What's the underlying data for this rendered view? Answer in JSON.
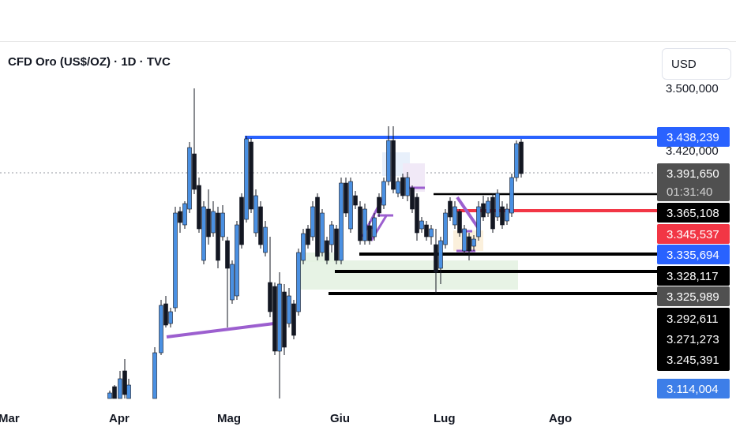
{
  "header": {
    "title": "CFD Oro (US$/OZ) · 1D · TVC",
    "currency": "USD"
  },
  "colors": {
    "up_body": "#4a90e2",
    "down_body": "#131722",
    "resistance_line": "#2962ff",
    "red_line": "#f23645",
    "black_line": "#000000",
    "purple_drawing": "#9c5fcf",
    "zone_green": "#e3f1e0"
  },
  "chart_data": {
    "type": "candlestick",
    "title": "CFD Oro (US$/OZ) · 1D · TVC",
    "x_labels": [
      "Mar",
      "Apr",
      "Mag",
      "Giu",
      "Lug",
      "Ago"
    ],
    "price_axis_ticks": [
      "3.500,000",
      "3.420,000"
    ],
    "price_labels": [
      {
        "text": "3.438,239",
        "value": 3438.239,
        "style": "blue"
      },
      {
        "text": "3.391,650",
        "value": 3391.65,
        "style": "dark-gray"
      },
      {
        "text": "01:31:40",
        "style": "dark-gray-countdown"
      },
      {
        "text": "3.365,108",
        "value": 3365.108,
        "style": "black"
      },
      {
        "text": "3.345,537",
        "value": 3345.537,
        "style": "red"
      },
      {
        "text": "3.335,694",
        "value": 3335.694,
        "style": "blue"
      },
      {
        "text": "3.328,117",
        "value": 3328.117,
        "style": "black"
      },
      {
        "text": "3.325,989",
        "value": 3325.989,
        "style": "dark-gray"
      },
      {
        "text": "3.292,611",
        "value": 3292.611,
        "style": "black"
      },
      {
        "text": "3.271,273",
        "value": 3271.273,
        "style": "black"
      },
      {
        "text": "3.245,391",
        "value": 3245.391,
        "style": "black"
      },
      {
        "text": "3.114,004",
        "value": 3114.004,
        "style": "blue"
      }
    ],
    "horizontal_levels": [
      {
        "name": "resistance",
        "value": 3438.239,
        "color": "blue"
      },
      {
        "name": "level-3391",
        "value": 3391.65,
        "color": "black"
      },
      {
        "name": "level-3365",
        "value": 3365.108,
        "color": "red"
      },
      {
        "name": "level-3335",
        "value": 3335.694,
        "color": "black"
      },
      {
        "name": "level-3328",
        "value": 3328.117,
        "color": "black"
      },
      {
        "name": "level-3325",
        "value": 3325.989,
        "color": "black"
      }
    ]
  }
}
